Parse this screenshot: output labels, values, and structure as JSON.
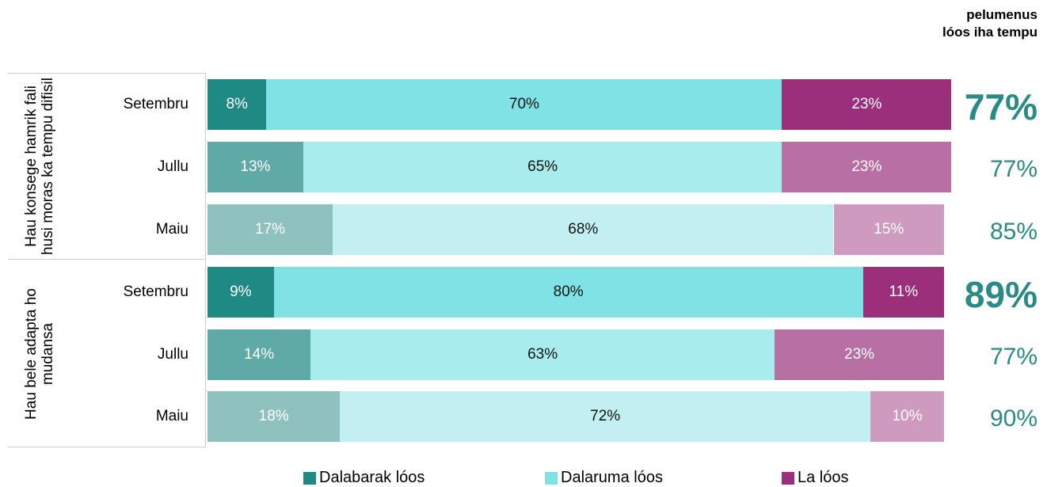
{
  "chart_data": {
    "type": "bar",
    "orientation": "horizontal",
    "stacked": true,
    "xlim": [
      0,
      100
    ],
    "groups": [
      {
        "name": "Hau konsege hamrik fali husi moras ka tempu difisil",
        "categories": [
          "Setembru",
          "Jullu",
          "Maiu"
        ]
      },
      {
        "name": "Hau bele adapta ho mudansa",
        "categories": [
          "Setembru",
          "Jullu",
          "Maiu"
        ]
      }
    ],
    "series": [
      {
        "name": "Dalabarak lóos",
        "color": "#1f8a84",
        "colors": [
          "#1f8a84",
          "#5fa9a6",
          "#8fc1bf",
          "#1f8a84",
          "#5fa9a6",
          "#8fc1bf"
        ],
        "values": [
          8,
          13,
          17,
          9,
          14,
          18
        ],
        "value_labels": [
          "8%",
          "13%",
          "17%",
          "9%",
          "14%",
          "18%"
        ]
      },
      {
        "name": "Dalaruma lóos",
        "color": "#7fe3e6",
        "colors": [
          "#7fe3e6",
          "#a8ecee",
          "#c2f0f2",
          "#7fe3e6",
          "#a8ecee",
          "#c2f0f2"
        ],
        "values": [
          70,
          65,
          68,
          80,
          63,
          72
        ],
        "value_labels": [
          "70%",
          "65%",
          "68%",
          "80%",
          "63%",
          "72%"
        ]
      },
      {
        "name": "La lóos",
        "color": "#9b2f7c",
        "colors": [
          "#9b2f7c",
          "#b86fa3",
          "#cf9ac0",
          "#9b2f7c",
          "#b86fa3",
          "#cf9ac0"
        ],
        "values": [
          23,
          23,
          15,
          11,
          23,
          10
        ],
        "value_labels": [
          "23%",
          "23%",
          "15%",
          "11%",
          "23%",
          "10%"
        ]
      }
    ],
    "totals_title": "pelumenus\nlóos iha tempu",
    "totals": {
      "color": "#2a8a85",
      "values": [
        77,
        77,
        85,
        89,
        77,
        90
      ],
      "value_labels": [
        "77%",
        "77%",
        "85%",
        "89%",
        "77%",
        "90%"
      ]
    }
  }
}
